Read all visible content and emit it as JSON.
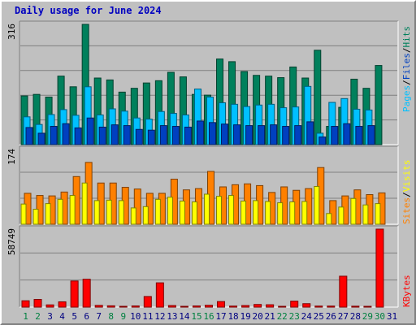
{
  "title": "Daily usage for June 2024",
  "colors": {
    "hits": "#00805C",
    "files": "#00C0FF",
    "pages": "#0040C0",
    "visits": "#FF8000",
    "sites": "#FFFF00",
    "kbytes": "#FF0000",
    "weekend_label": "#008040",
    "weekday_label": "#000080",
    "grid": "#808080",
    "background": "#C0C0C0"
  },
  "chart_data": [
    {
      "type": "bar",
      "title": "",
      "ylabel_parts": [
        "Pages",
        "/",
        "Files",
        "/",
        "Hits"
      ],
      "ymax_label": "316",
      "ylim": [
        0,
        316
      ],
      "x": [
        1,
        2,
        3,
        4,
        5,
        6,
        7,
        8,
        9,
        10,
        11,
        12,
        13,
        14,
        15,
        16,
        17,
        18,
        19,
        20,
        21,
        22,
        23,
        24,
        25,
        26,
        27,
        28,
        29,
        30,
        31
      ],
      "series": [
        {
          "name": "Hits",
          "values": [
            128,
            132,
            125,
            180,
            152,
            316,
            175,
            170,
            138,
            148,
            162,
            168,
            190,
            178,
            132,
            130,
            225,
            218,
            192,
            182,
            180,
            176,
            204,
            175,
            248,
            48,
            98,
            172,
            148,
            208,
            0
          ]
        },
        {
          "name": "Files",
          "values": [
            73,
            53,
            79,
            92,
            77,
            152,
            78,
            94,
            88,
            70,
            67,
            87,
            82,
            78,
            146,
            125,
            110,
            106,
            100,
            104,
            106,
            97,
            99,
            153,
            30,
            111,
            121,
            93,
            91,
            0,
            0
          ]
        },
        {
          "name": "Pages",
          "values": [
            45,
            30,
            48,
            55,
            44,
            70,
            46,
            52,
            50,
            40,
            38,
            50,
            48,
            46,
            62,
            58,
            54,
            52,
            50,
            50,
            52,
            48,
            50,
            60,
            20,
            48,
            55,
            48,
            50,
            0,
            0
          ]
        }
      ]
    },
    {
      "type": "bar",
      "title": "",
      "ylabel_parts": [
        "Sites",
        "/",
        "Visits"
      ],
      "ymax_label": "174",
      "ylim": [
        0,
        174
      ],
      "x": [
        1,
        2,
        3,
        4,
        5,
        6,
        7,
        8,
        9,
        10,
        11,
        12,
        13,
        14,
        15,
        16,
        17,
        18,
        19,
        20,
        21,
        22,
        23,
        24,
        25,
        26,
        27,
        28,
        29,
        30,
        31
      ],
      "series": [
        {
          "name": "Visits",
          "values": [
            72,
            67,
            66,
            75,
            111,
            144,
            96,
            96,
            86,
            82,
            72,
            72,
            105,
            80,
            83,
            123,
            87,
            92,
            94,
            90,
            74,
            87,
            79,
            83,
            132,
            55,
            66,
            80,
            69,
            73,
            0
          ]
        },
        {
          "name": "Sites",
          "values": [
            47,
            35,
            48,
            58,
            67,
            96,
            55,
            56,
            55,
            38,
            41,
            58,
            63,
            54,
            52,
            70,
            65,
            67,
            54,
            55,
            53,
            50,
            52,
            53,
            88,
            25,
            40,
            60,
            45,
            48,
            0
          ]
        }
      ]
    },
    {
      "type": "bar",
      "title": "",
      "ylabel": "KBytes",
      "ymax_label": "58749",
      "ylim": [
        0,
        58749
      ],
      "x": [
        1,
        2,
        3,
        4,
        5,
        6,
        7,
        8,
        9,
        10,
        11,
        12,
        13,
        14,
        15,
        16,
        17,
        18,
        19,
        20,
        21,
        22,
        23,
        24,
        25,
        26,
        27,
        28,
        29,
        30,
        31
      ],
      "series": [
        {
          "name": "KBytes",
          "values": [
            4800,
            5800,
            1700,
            4000,
            19700,
            21000,
            1300,
            1000,
            500,
            900,
            8000,
            18300,
            1200,
            500,
            900,
            1400,
            4200,
            800,
            1200,
            2000,
            1800,
            600,
            4500,
            2600,
            800,
            800,
            23300,
            700,
            400,
            58749,
            0
          ]
        }
      ]
    }
  ],
  "x_labels": [
    "1",
    "2",
    "3",
    "4",
    "5",
    "6",
    "7",
    "8",
    "9",
    "10",
    "11",
    "12",
    "13",
    "14",
    "15",
    "16",
    "17",
    "18",
    "19",
    "20",
    "21",
    "22",
    "23",
    "24",
    "25",
    "26",
    "27",
    "28",
    "29",
    "30",
    "31"
  ],
  "weekend_days": [
    1,
    2,
    8,
    9,
    15,
    16,
    22,
    23,
    29,
    30
  ]
}
